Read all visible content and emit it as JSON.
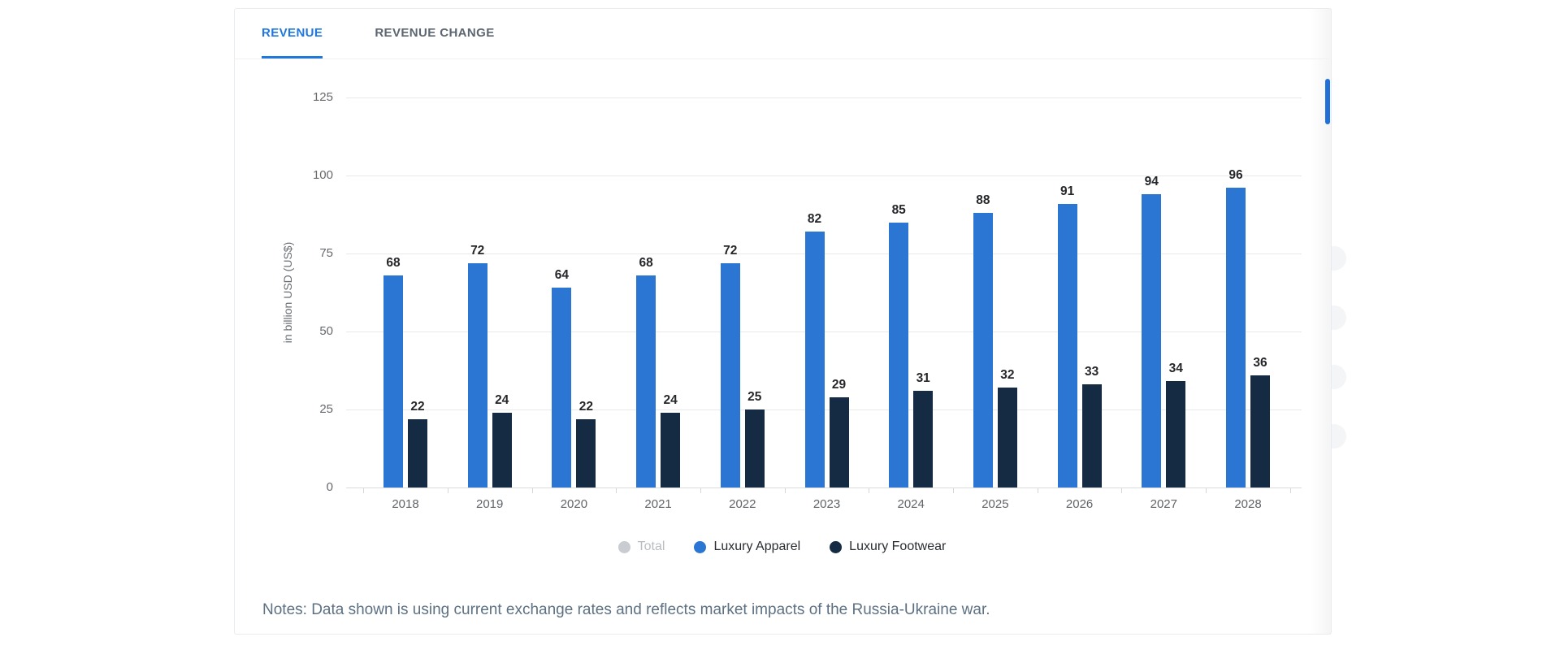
{
  "tabs": [
    {
      "label": "REVENUE",
      "active": true
    },
    {
      "label": "REVENUE CHANGE",
      "active": false
    }
  ],
  "chart_data": {
    "type": "bar",
    "title": "",
    "xlabel": "",
    "ylabel": "in billion USD (US$)",
    "ylim": [
      0,
      125
    ],
    "yticks": [
      0,
      25,
      50,
      75,
      100,
      125
    ],
    "grid": true,
    "legend_position": "bottom",
    "categories": [
      "2018",
      "2019",
      "2020",
      "2021",
      "2022",
      "2023",
      "2024",
      "2025",
      "2026",
      "2027",
      "2028"
    ],
    "series": [
      {
        "name": "Total",
        "color": "#c9ccd0",
        "disabled": true,
        "values": null
      },
      {
        "name": "Luxury Apparel",
        "color": "#2b76d3",
        "disabled": false,
        "values": [
          68,
          72,
          64,
          68,
          72,
          82,
          85,
          88,
          91,
          94,
          96
        ]
      },
      {
        "name": "Luxury Footwear",
        "color": "#152b43",
        "disabled": false,
        "values": [
          22,
          24,
          22,
          24,
          25,
          29,
          31,
          32,
          33,
          34,
          36
        ]
      }
    ]
  },
  "notes": "Notes: Data shown is using current exchange rates and reflects market impacts of the Russia-Ukraine war.",
  "colors": {
    "accent_blue": "#1e78de",
    "bar_blue": "#2b76d3",
    "bar_navy": "#152b43",
    "disabled_gray": "#c9ccd0",
    "gridline": "#e8e9eb",
    "notes_text": "#5d7183"
  }
}
